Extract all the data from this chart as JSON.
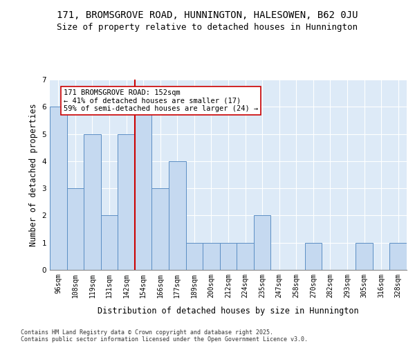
{
  "title": "171, BROMSGROVE ROAD, HUNNINGTON, HALESOWEN, B62 0JU",
  "subtitle": "Size of property relative to detached houses in Hunnington",
  "xlabel": "Distribution of detached houses by size in Hunnington",
  "ylabel": "Number of detached properties",
  "categories": [
    "96sqm",
    "108sqm",
    "119sqm",
    "131sqm",
    "142sqm",
    "154sqm",
    "166sqm",
    "177sqm",
    "189sqm",
    "200sqm",
    "212sqm",
    "224sqm",
    "235sqm",
    "247sqm",
    "258sqm",
    "270sqm",
    "282sqm",
    "293sqm",
    "305sqm",
    "316sqm",
    "328sqm"
  ],
  "values": [
    6,
    3,
    5,
    2,
    5,
    6,
    3,
    4,
    1,
    1,
    1,
    1,
    2,
    0,
    0,
    1,
    0,
    0,
    1,
    0,
    1
  ],
  "bar_color": "#c5d9f0",
  "bar_edge_color": "#5b8ec4",
  "background_color": "#ddeaf7",
  "red_line_index": 5,
  "red_line_label": "171 BROMSGROVE ROAD: 152sqm",
  "annotation_line1": "← 41% of detached houses are smaller (17)",
  "annotation_line2": "59% of semi-detached houses are larger (24) →",
  "ylim": [
    0,
    7
  ],
  "yticks": [
    0,
    1,
    2,
    3,
    4,
    5,
    6,
    7
  ],
  "footer1": "Contains HM Land Registry data © Crown copyright and database right 2025.",
  "footer2": "Contains public sector information licensed under the Open Government Licence v3.0.",
  "title_fontsize": 10,
  "subtitle_fontsize": 9,
  "axis_label_fontsize": 8.5,
  "tick_fontsize": 7,
  "annotation_fontsize": 7.5,
  "footer_fontsize": 6
}
